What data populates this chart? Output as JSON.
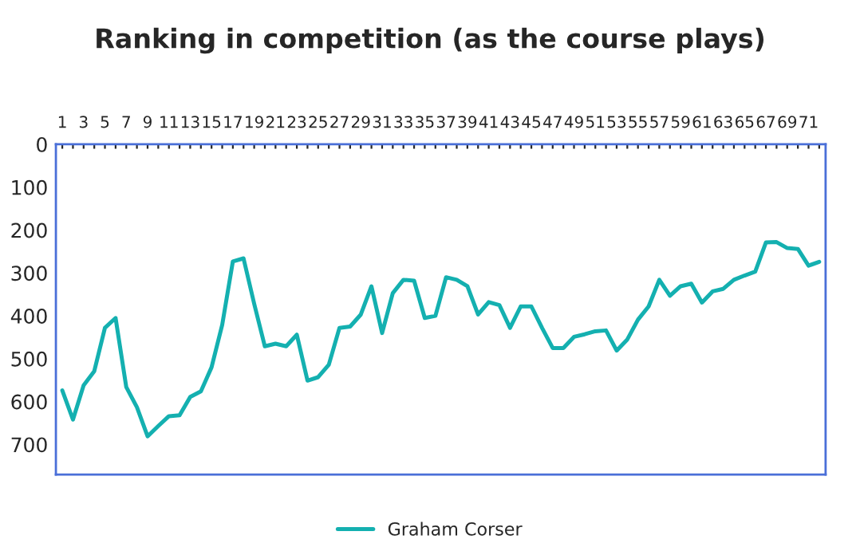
{
  "chart_data": {
    "type": "line",
    "title": "Ranking in competition (as the course plays)",
    "categories": [
      "1",
      null,
      "3",
      null,
      "5",
      null,
      "7",
      null,
      "9",
      null,
      "11",
      null,
      "13",
      null,
      "15",
      null,
      "17",
      null,
      "19",
      null,
      "21",
      null,
      "23",
      null,
      "25",
      null,
      "27",
      null,
      "29",
      null,
      "31",
      null,
      "33",
      null,
      "35",
      null,
      "37",
      null,
      "39",
      null,
      "41",
      null,
      "43",
      null,
      "45",
      null,
      "47",
      null,
      "49",
      null,
      "51",
      null,
      "53",
      null,
      "55",
      null,
      "57",
      null,
      "59",
      null,
      "61",
      null,
      "63",
      null,
      "65",
      null,
      "67",
      null,
      "69",
      null,
      "71",
      null
    ],
    "series": [
      {
        "name": "Graham Corser",
        "color": "#14b0b0",
        "values": [
          574,
          642,
          562,
          529,
          428,
          405,
          566,
          613,
          681,
          657,
          634,
          632,
          589,
          576,
          520,
          421,
          273,
          266,
          372,
          471,
          465,
          471,
          444,
          551,
          543,
          514,
          428,
          425,
          397,
          331,
          440,
          347,
          316,
          318,
          405,
          400,
          310,
          316,
          331,
          397,
          368,
          375,
          428,
          378,
          378,
          428,
          475,
          475,
          449,
          443,
          436,
          434,
          481,
          455,
          409,
          378,
          316,
          353,
          331,
          325,
          369,
          343,
          337,
          316,
          306,
          297,
          229,
          228,
          242,
          244,
          283,
          274
        ]
      }
    ],
    "ylim": [
      770,
      0
    ],
    "yticks": [
      0,
      100,
      200,
      300,
      400,
      500,
      600,
      700
    ],
    "grid": false,
    "legend": "bottom",
    "marker": "none",
    "line_style": "solid"
  }
}
